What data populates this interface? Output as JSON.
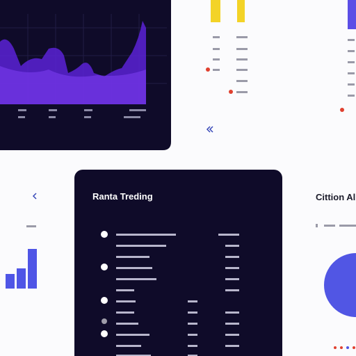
{
  "panels": {
    "trending": {
      "title": "Ranta Treding"
    },
    "citation": {
      "title": "Cittion Al"
    }
  }
}
